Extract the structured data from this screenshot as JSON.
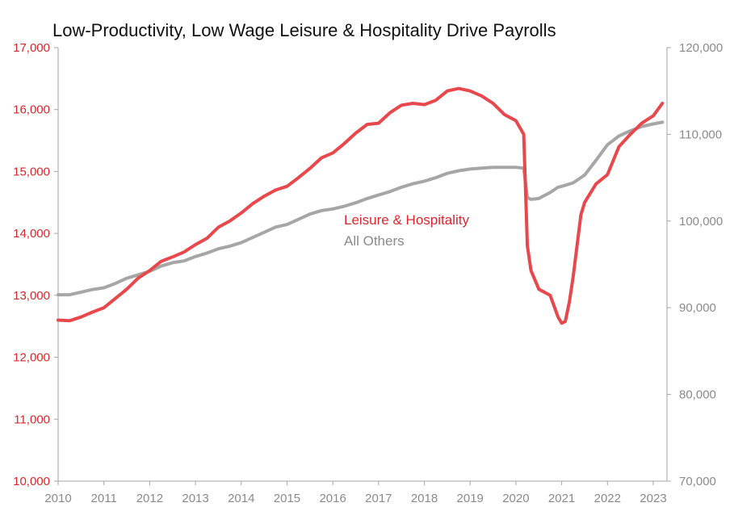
{
  "chart_data": {
    "type": "line",
    "title": "Low-Productivity, Low Wage Leisure & Hospitality Drive Payrolls",
    "x_ticks": [
      "2010",
      "2011",
      "2012",
      "2013",
      "2014",
      "2015",
      "2016",
      "2017",
      "2018",
      "2019",
      "2020",
      "2021",
      "2022",
      "2023"
    ],
    "xlim": [
      2010,
      2023.3
    ],
    "y_left": {
      "range": [
        10000,
        17000
      ],
      "ticks": [
        "10,000",
        "11,000",
        "12,000",
        "13,000",
        "14,000",
        "15,000",
        "16,000",
        "17,000"
      ],
      "tick_values": [
        10000,
        11000,
        12000,
        13000,
        14000,
        15000,
        16000,
        17000
      ],
      "color": "#d42a2a"
    },
    "y_right": {
      "range": [
        70000,
        120000
      ],
      "ticks": [
        "70,000",
        "80,000",
        "90,000",
        "100,000",
        "110,000",
        "120,000"
      ],
      "tick_values": [
        70000,
        80000,
        90000,
        100000,
        110000,
        120000
      ],
      "color": "#8a8a8a"
    },
    "series": [
      {
        "name": "Leisure & Hospitality",
        "axis": "left",
        "color": "#e8474c",
        "x": [
          2010.0,
          2010.25,
          2010.5,
          2010.75,
          2011.0,
          2011.25,
          2011.5,
          2011.75,
          2012.0,
          2012.25,
          2012.5,
          2012.75,
          2013.0,
          2013.25,
          2013.5,
          2013.75,
          2014.0,
          2014.25,
          2014.5,
          2014.75,
          2015.0,
          2015.25,
          2015.5,
          2015.75,
          2016.0,
          2016.25,
          2016.5,
          2016.75,
          2017.0,
          2017.25,
          2017.5,
          2017.75,
          2018.0,
          2018.25,
          2018.5,
          2018.75,
          2019.0,
          2019.25,
          2019.5,
          2019.75,
          2020.0,
          2020.17,
          2020.25,
          2020.33,
          2020.5,
          2020.75,
          2020.92,
          2021.0,
          2021.08,
          2021.17,
          2021.25,
          2021.42,
          2021.5,
          2021.75,
          2022.0,
          2022.25,
          2022.5,
          2022.75,
          2023.0,
          2023.2
        ],
        "values": [
          12600,
          12590,
          12650,
          12730,
          12800,
          12950,
          13100,
          13280,
          13400,
          13550,
          13620,
          13700,
          13820,
          13920,
          14100,
          14200,
          14330,
          14480,
          14600,
          14700,
          14760,
          14900,
          15050,
          15220,
          15300,
          15450,
          15620,
          15760,
          15780,
          15950,
          16070,
          16100,
          16080,
          16150,
          16300,
          16340,
          16300,
          16220,
          16100,
          15920,
          15820,
          15600,
          13800,
          13400,
          13100,
          13000,
          12650,
          12550,
          12580,
          12900,
          13300,
          14300,
          14500,
          14800,
          14950,
          15400,
          15600,
          15780,
          15900,
          16100
        ]
      },
      {
        "name": "All Others",
        "axis": "right",
        "color": "#a6a6a6",
        "x": [
          2010.0,
          2010.25,
          2010.5,
          2010.75,
          2011.0,
          2011.25,
          2011.5,
          2011.75,
          2012.0,
          2012.25,
          2012.5,
          2012.75,
          2013.0,
          2013.25,
          2013.5,
          2013.75,
          2014.0,
          2014.25,
          2014.5,
          2014.75,
          2015.0,
          2015.25,
          2015.5,
          2015.75,
          2016.0,
          2016.25,
          2016.5,
          2016.75,
          2017.0,
          2017.25,
          2017.5,
          2017.75,
          2018.0,
          2018.25,
          2018.5,
          2018.75,
          2019.0,
          2019.25,
          2019.5,
          2019.75,
          2020.0,
          2020.17,
          2020.25,
          2020.33,
          2020.5,
          2020.75,
          2020.92,
          2021.0,
          2021.25,
          2021.5,
          2021.75,
          2022.0,
          2022.25,
          2022.5,
          2022.75,
          2023.0,
          2023.2
        ],
        "values": [
          91500,
          91500,
          91800,
          92100,
          92300,
          92800,
          93400,
          93800,
          94200,
          94800,
          95200,
          95400,
          95900,
          96300,
          96800,
          97100,
          97500,
          98100,
          98700,
          99300,
          99600,
          100200,
          100800,
          101200,
          101400,
          101700,
          102100,
          102600,
          103000,
          103400,
          103900,
          104300,
          104600,
          105000,
          105500,
          105800,
          106000,
          106100,
          106200,
          106200,
          106200,
          106100,
          102700,
          102500,
          102600,
          103300,
          103900,
          104000,
          104400,
          105300,
          107000,
          108800,
          109800,
          110400,
          110900,
          111200,
          111400
        ]
      }
    ],
    "legend": {
      "items": [
        "Leisure & Hospitality",
        "All Others"
      ],
      "placement": "center"
    }
  }
}
